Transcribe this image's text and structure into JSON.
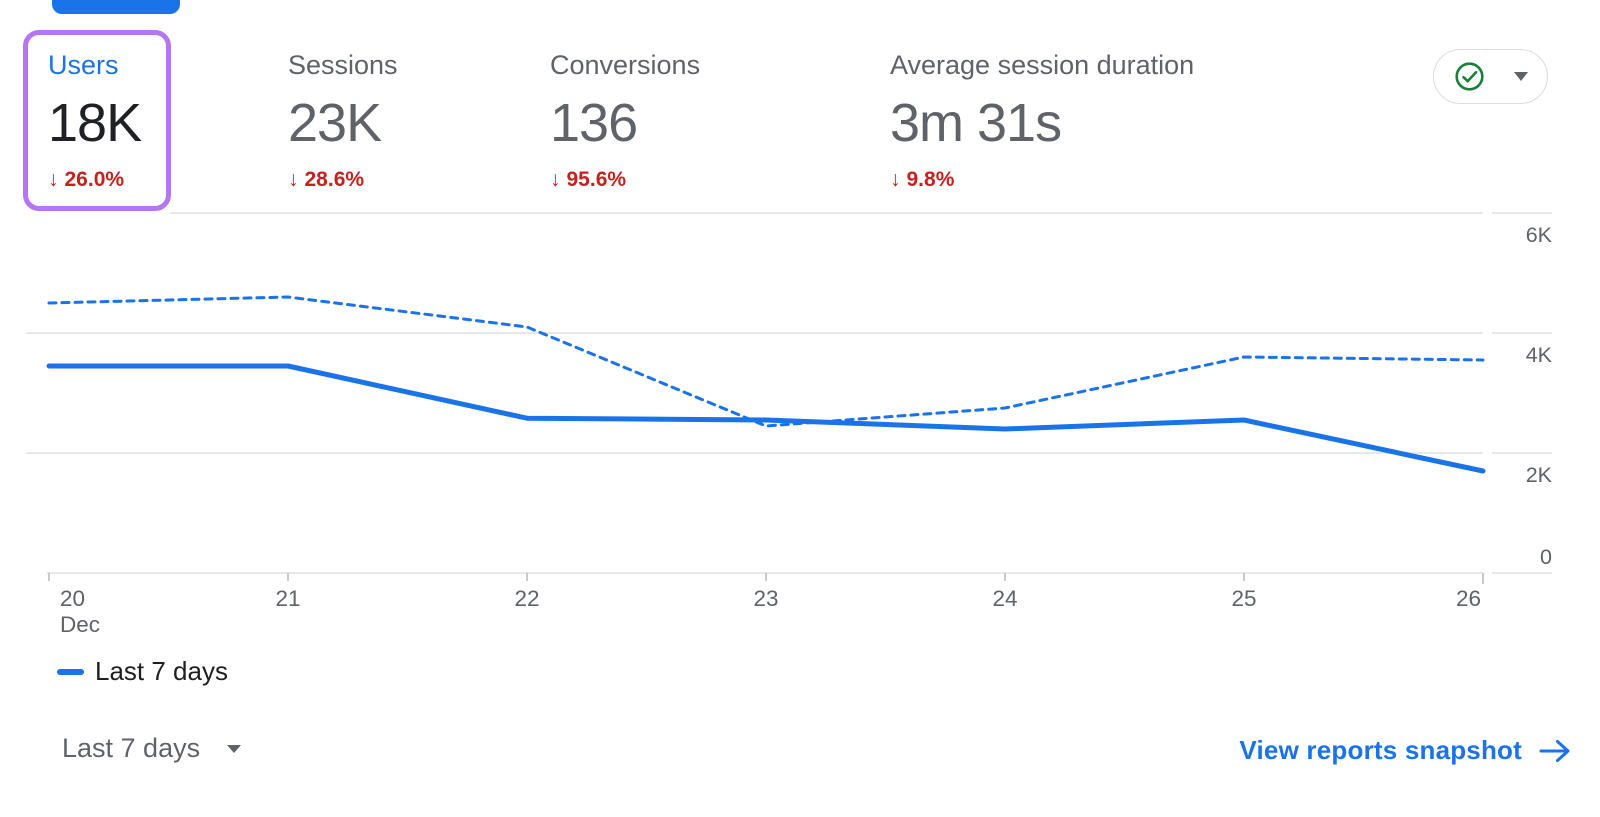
{
  "colors": {
    "accent_blue": "#1a73e8",
    "negative_red": "#c5221f",
    "highlight_purple": "#b675f2",
    "value_dark": "#202124",
    "text_gray": "#5f6368",
    "grid_gray": "#e7e8ea",
    "pill_border": "#dadce0",
    "check_green": "#188038"
  },
  "glyphs": {
    "down_arrow": "↓"
  },
  "metrics": [
    {
      "label": "Users",
      "value": "18K",
      "delta": "26.0%",
      "direction": "down",
      "selected": true,
      "highlighted": true
    },
    {
      "label": "Sessions",
      "value": "23K",
      "delta": "28.6%",
      "direction": "down",
      "selected": false
    },
    {
      "label": "Conversions",
      "value": "136",
      "delta": "95.6%",
      "direction": "down",
      "selected": false
    },
    {
      "label": "Average session duration",
      "value": "3m 31s",
      "delta": "9.8%",
      "direction": "down",
      "selected": false
    }
  ],
  "status_control": {
    "icon": "check-circle-icon",
    "dropdown_icon": "caret-down-icon"
  },
  "chart_data": {
    "type": "line",
    "x": [
      "20",
      "21",
      "22",
      "23",
      "24",
      "25",
      "26"
    ],
    "x_month": "Dec",
    "series": [
      {
        "id": "current-period",
        "legend": "Last 7 days",
        "style": "solid",
        "color": "#1a73e8",
        "values": [
          3450,
          3450,
          2580,
          2550,
          2400,
          2550,
          1700
        ]
      },
      {
        "id": "comparison-period",
        "legend": null,
        "style": "dashed",
        "color": "#1a73e8",
        "values": [
          4500,
          4600,
          4100,
          2450,
          2750,
          3600,
          3550
        ]
      }
    ],
    "ylim": [
      0,
      6000
    ],
    "yticks": [
      0,
      2000,
      4000,
      6000
    ],
    "ytick_labels": [
      "0",
      "2K",
      "4K",
      "6K"
    ],
    "grid": "horizontal",
    "legend_position": "bottom-left"
  },
  "legend": {
    "items": [
      {
        "label": "Last 7 days",
        "color": "#1a73e8"
      }
    ]
  },
  "footer": {
    "range_selector": {
      "label": "Last 7 days",
      "icon": "caret-down-icon"
    },
    "link": {
      "label": "View reports snapshot",
      "icon": "arrow-right-icon"
    }
  }
}
